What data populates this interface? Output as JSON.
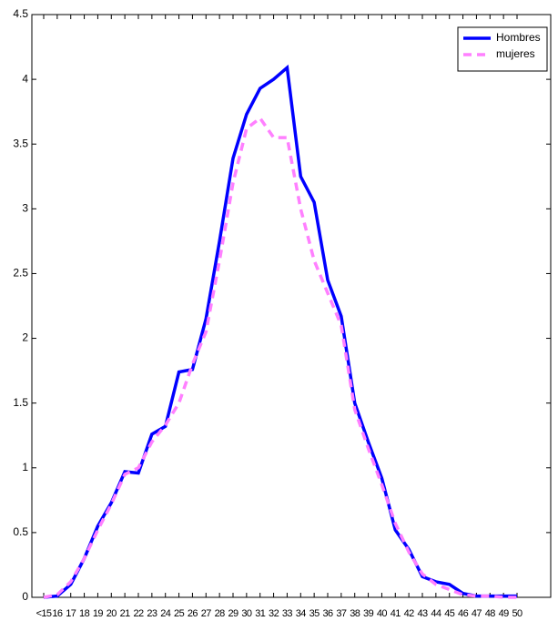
{
  "chart_data": {
    "type": "line",
    "categories": [
      "<15",
      "16",
      "17",
      "18",
      "19",
      "20",
      "21",
      "22",
      "23",
      "24",
      "25",
      "26",
      "27",
      "28",
      "29",
      "30",
      "31",
      "32",
      "33",
      "34",
      "35",
      "36",
      "37",
      "38",
      "39",
      "40",
      "41",
      "42",
      "43",
      "44",
      "45",
      "46",
      "47",
      "48",
      "49",
      "50"
    ],
    "series": [
      {
        "name": "Hombres",
        "color": "#0000ff",
        "dash": false,
        "values": [
          0,
          0.01,
          0.1,
          0.3,
          0.55,
          0.73,
          0.97,
          0.96,
          1.26,
          1.32,
          1.74,
          1.76,
          2.15,
          2.75,
          3.39,
          3.73,
          3.93,
          4.0,
          4.09,
          3.25,
          3.05,
          2.45,
          2.17,
          1.5,
          1.2,
          0.92,
          0.52,
          0.37,
          0.16,
          0.12,
          0.1,
          0.03,
          0.01,
          0.01,
          0.01,
          0.01
        ]
      },
      {
        "name": "mujeres",
        "color": "#ff80ff",
        "dash": true,
        "values": [
          0,
          0.02,
          0.12,
          0.3,
          0.52,
          0.72,
          0.95,
          1.0,
          1.2,
          1.33,
          1.5,
          1.8,
          2.05,
          2.6,
          3.2,
          3.62,
          3.7,
          3.55,
          3.55,
          3.0,
          2.6,
          2.35,
          2.1,
          1.45,
          1.15,
          0.87,
          0.57,
          0.35,
          0.18,
          0.1,
          0.06,
          0.02,
          0.01,
          0.01,
          0,
          0
        ]
      }
    ],
    "ylim": [
      0,
      4.5
    ],
    "yticks": [
      0,
      0.5,
      1,
      1.5,
      2,
      2.5,
      3,
      3.5,
      4,
      4.5
    ],
    "grid": false,
    "legend": "top-right"
  }
}
